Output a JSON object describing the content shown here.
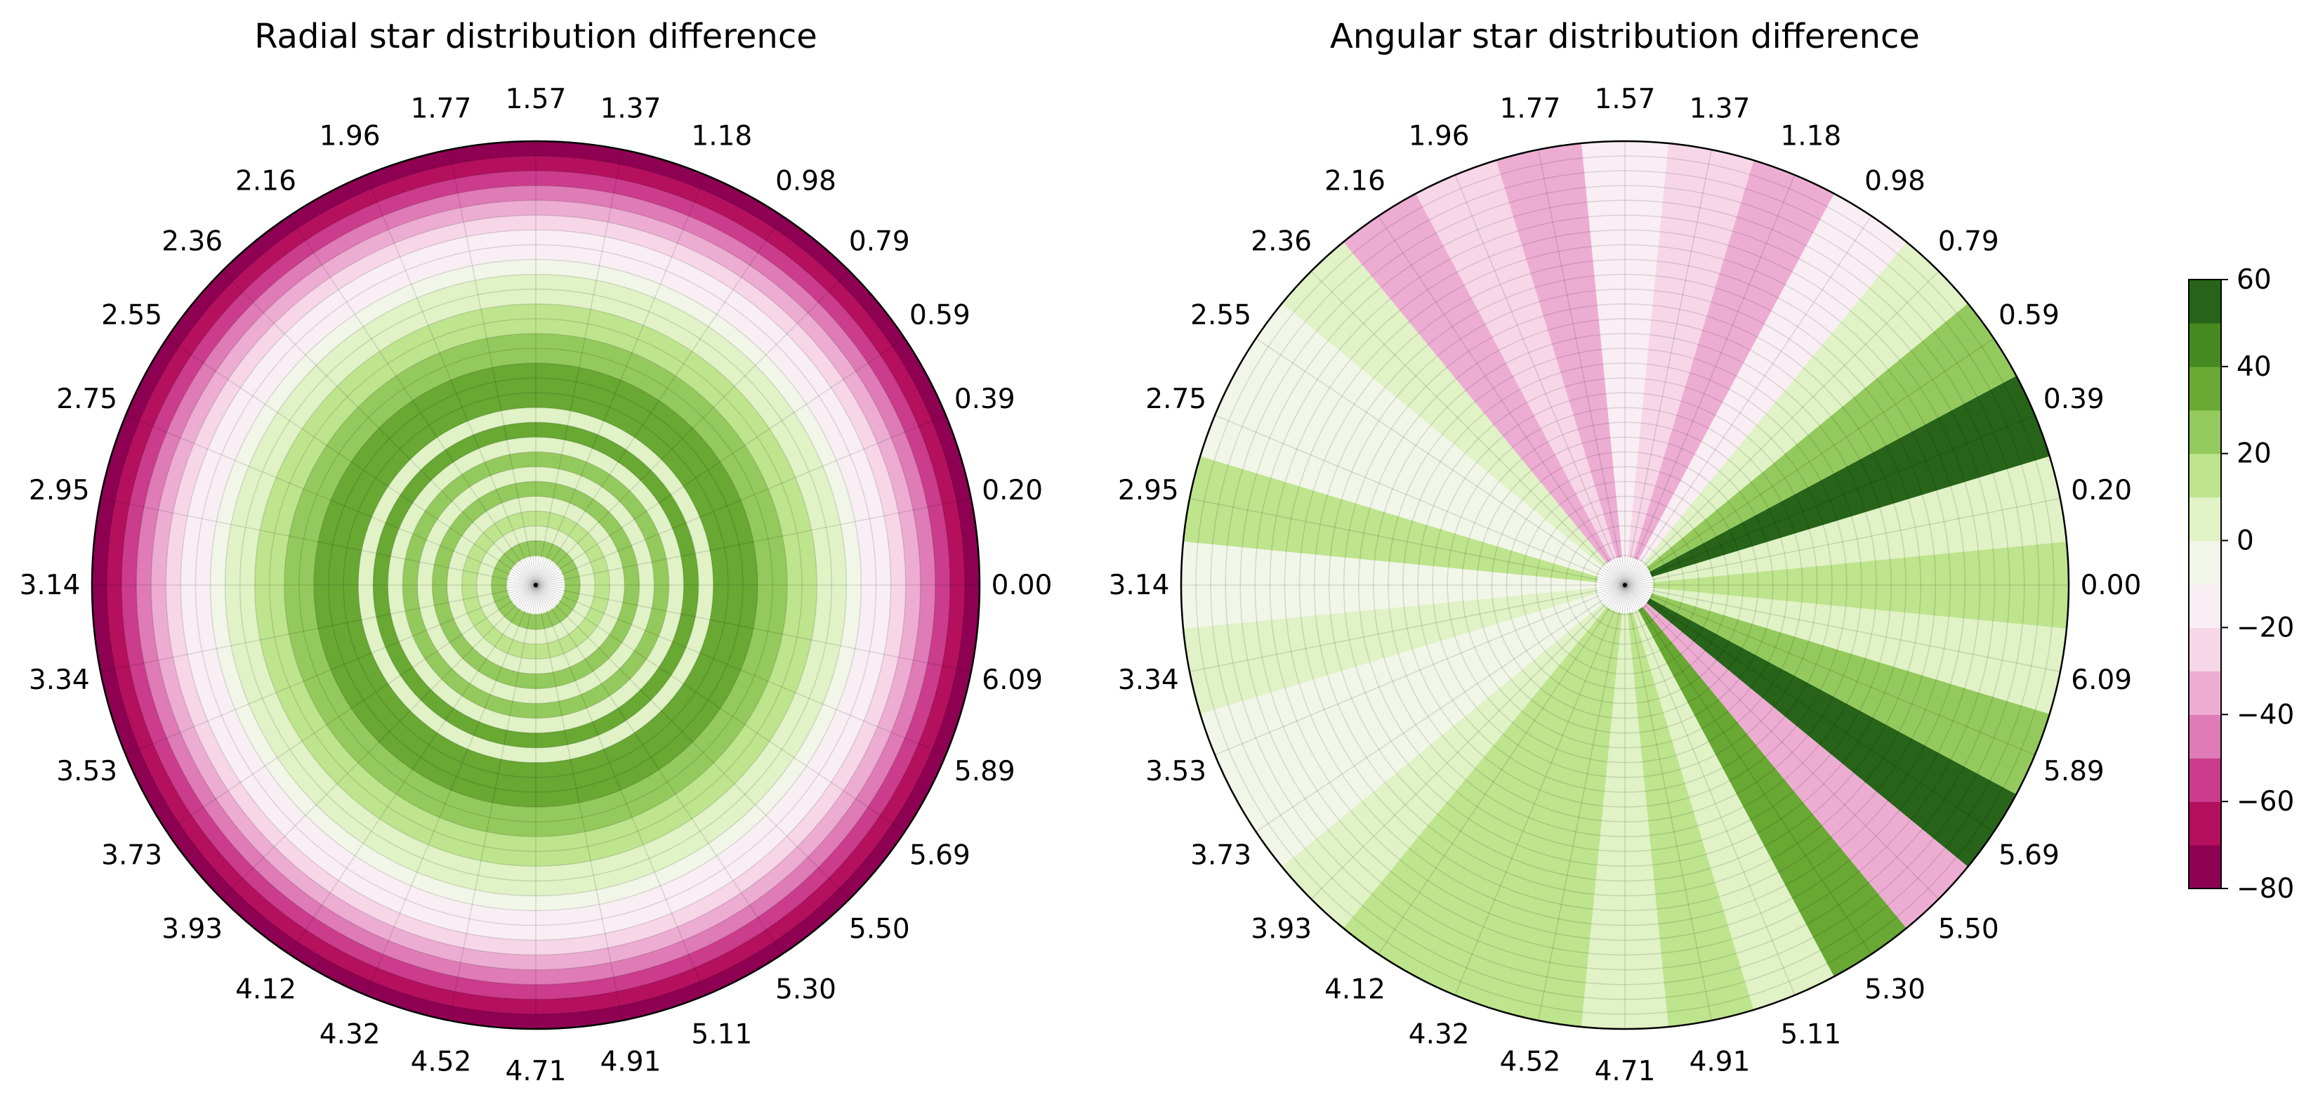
{
  "colors": [
    "#8e0152",
    "#b4105e",
    "#cb3c8d",
    "#df7bb6",
    "#edadd3",
    "#f7d6e8",
    "#f9eef3",
    "#f1f6e8",
    "#e0f2c6",
    "#bee48d",
    "#94ca5d",
    "#68a833",
    "#458a20",
    "#276419"
  ],
  "levels": [
    -80,
    -70,
    -60,
    -50,
    -40,
    -30,
    -20,
    -10,
    0,
    10,
    20,
    30,
    40,
    50,
    60
  ],
  "chart_data": [
    {
      "type": "polar-contour",
      "title": "Radial star distribution difference",
      "angular_tick_labels": [
        "0.00",
        "0.20",
        "0.39",
        "0.59",
        "0.79",
        "0.98",
        "1.18",
        "1.37",
        "1.57",
        "1.77",
        "1.96",
        "2.16",
        "2.36",
        "2.55",
        "2.75",
        "2.95",
        "3.14",
        "3.34",
        "3.53",
        "3.73",
        "3.93",
        "4.12",
        "4.32",
        "4.52",
        "4.71",
        "4.91",
        "5.11",
        "5.30",
        "5.50",
        "5.69",
        "5.89",
        "6.09"
      ],
      "grid": true,
      "radial_band_values": [
        12,
        5,
        25,
        5,
        12,
        5,
        25,
        5,
        22,
        5,
        35,
        5,
        35,
        35,
        32,
        22,
        22,
        14,
        12,
        5,
        5,
        -5,
        -15,
        -15,
        -25,
        -35,
        -45,
        -55,
        -65,
        -75
      ]
    },
    {
      "type": "polar-contour",
      "title": "Angular star distribution difference",
      "angular_tick_labels": [
        "0.00",
        "0.20",
        "0.39",
        "0.59",
        "0.79",
        "0.98",
        "1.18",
        "1.37",
        "1.57",
        "1.77",
        "1.96",
        "2.16",
        "2.36",
        "2.55",
        "2.75",
        "2.95",
        "3.14",
        "3.34",
        "3.53",
        "3.73",
        "3.93",
        "4.12",
        "4.32",
        "4.52",
        "4.71",
        "4.91",
        "5.11",
        "5.30",
        "5.50",
        "5.69",
        "5.89",
        "6.09"
      ],
      "grid": true,
      "sector_values": [
        15,
        2,
        55,
        25,
        5,
        -15,
        -35,
        -25,
        -15,
        -35,
        -25,
        -35,
        5,
        -5,
        -5,
        15,
        -5,
        2,
        -5,
        -5,
        5,
        15,
        15,
        15,
        5,
        15,
        5,
        35,
        -35,
        55,
        25,
        5
      ]
    }
  ],
  "colorbar": {
    "tick_labels": [
      "60",
      "40",
      "20",
      "0",
      "−20",
      "−40",
      "−60",
      "−80"
    ],
    "tick_values": [
      60,
      40,
      20,
      0,
      -20,
      -40,
      -60,
      -80
    ],
    "range": [
      -80,
      60
    ]
  }
}
